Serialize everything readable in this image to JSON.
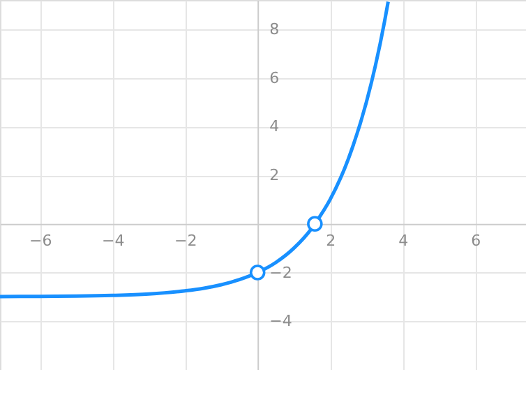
{
  "chart_data": {
    "type": "line",
    "series": [
      {
        "type": "line",
        "color": "#1890ff",
        "marker": "none",
        "x": [
          -7.1,
          -6,
          -5,
          -4,
          -3,
          -2,
          -1.5,
          -1,
          -0.5,
          0,
          0.5,
          1,
          1.5,
          1.58,
          2,
          2.5,
          3,
          3.25,
          3.5,
          3.6
        ],
        "values": [
          -2.99,
          -2.98,
          -2.97,
          -2.94,
          -2.88,
          -2.75,
          -2.65,
          -2.5,
          -2.29,
          -2,
          -1.59,
          -1,
          -0.17,
          0,
          1,
          2.66,
          5,
          6.51,
          8.31,
          9.13
        ]
      },
      {
        "type": "scatter",
        "color": "#1890ff",
        "marker": "circle",
        "x": [
          0,
          1.58
        ],
        "values": [
          -2,
          0
        ]
      }
    ],
    "xlim": [
      -7.1,
      7.4
    ],
    "ylim": [
      -6,
      9.2
    ],
    "xticks": [
      -6,
      -4,
      -2,
      2,
      4,
      6
    ],
    "yticks": [
      -4,
      -2,
      2,
      4,
      6,
      8
    ],
    "grid": true
  }
}
